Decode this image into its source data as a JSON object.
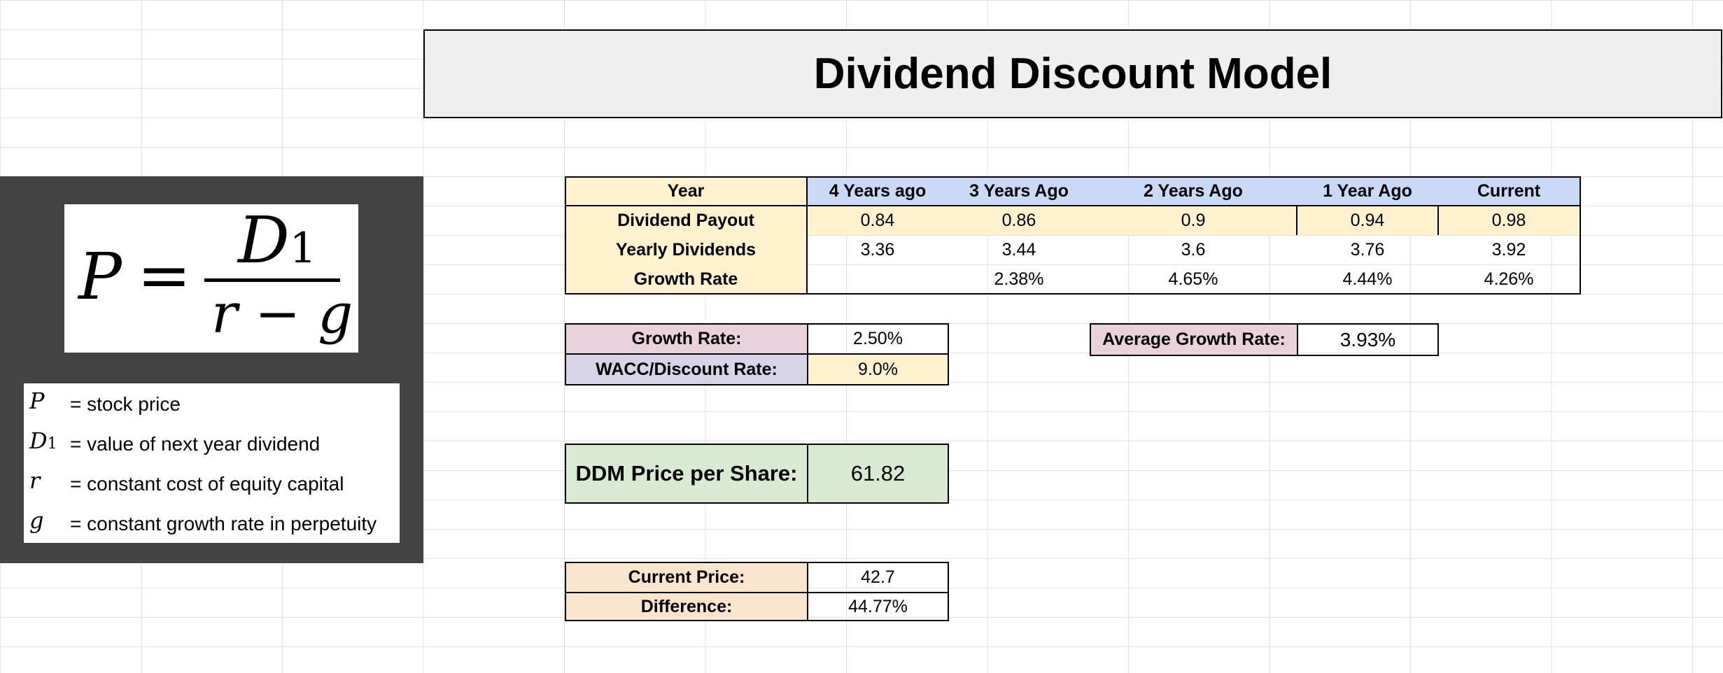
{
  "title": "Dividend Discount Model",
  "formula": {
    "lhs": "P",
    "equals": "=",
    "numerator": "D",
    "numerator_sub": "1",
    "denominator": "r − g",
    "legend": [
      {
        "symbol": "P",
        "sub": "",
        "text": "= stock price"
      },
      {
        "symbol": "D",
        "sub": "1",
        "text": "= value of next year dividend"
      },
      {
        "symbol": "r",
        "sub": "",
        "text": "= constant cost of equity capital"
      },
      {
        "symbol": "g",
        "sub": "",
        "text": "= constant growth rate in perpetuity"
      }
    ]
  },
  "history_table": {
    "headers": [
      "Year",
      "4 Years ago",
      "3 Years Ago",
      "2 Years Ago",
      "1 Year Ago",
      "Current"
    ],
    "rows": [
      {
        "label": "Dividend Payout",
        "values": [
          "0.84",
          "0.86",
          "0.9",
          "0.94",
          "0.98"
        ]
      },
      {
        "label": "Yearly Dividends",
        "values": [
          "3.36",
          "3.44",
          "3.6",
          "3.76",
          "3.92"
        ]
      },
      {
        "label": "Growth Rate",
        "values": [
          "",
          "2.38%",
          "4.65%",
          "4.44%",
          "4.26%"
        ]
      }
    ]
  },
  "inputs": {
    "growth_rate_label": "Growth Rate:",
    "growth_rate_value": "2.50%",
    "wacc_label": "WACC/Discount Rate:",
    "wacc_value": "9.0%",
    "avg_growth_label": "Average Growth Rate:",
    "avg_growth_value": "3.93%"
  },
  "result": {
    "ddm_label": "DDM Price per Share:",
    "ddm_value": "61.82",
    "current_price_label": "Current Price:",
    "current_price_value": "42.7",
    "difference_label": "Difference:",
    "difference_value": "44.77%"
  },
  "colors": {
    "grid": "#e2e2e2",
    "panel": "#434343",
    "banner": "#efefef",
    "yellow": "#fff2cc",
    "blue": "#c9daf8",
    "pink": "#ead1dc",
    "lavender": "#d9d2e9",
    "green": "#d9ead3",
    "peach": "#fce5cd"
  }
}
